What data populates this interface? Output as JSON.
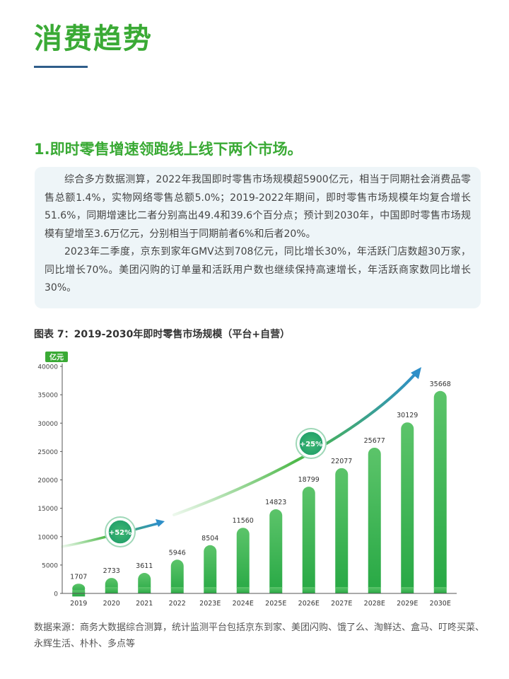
{
  "page": {
    "title": "消费趋势",
    "section_heading": "1.即时零售增速领跑线上线下两个市场。",
    "paragraphs": [
      "综合多方数据测算，2022年我国即时零售市场规模超5900亿元，相当于同期社会消费品零售总额1.4%，实物网络零售总额5.0%；2019-2022年期间，即时零售市场规模年均复合增长51.6%，同期增速比二者分别高出49.4和39.6个百分点；预计到2030年，中国即时零售市场规模有望增至3.6万亿元，分别相当于同期前者6%和后者20%。",
      "2023年二季度，京东到家年GMV达到708亿元，同比增长30%，年活跃门店数超30万家，同比增长70%。美团闪购的订单量和活跃用户数也继续保持高速增长，年活跃商家数同比增长30%。"
    ],
    "figure_caption": "图表 7：2019-2030年即时零售市场规模（平台+自营）",
    "source_note": "数据来源：商务大数据综合测算，统计监测平台包括京东到家、美团闪购、饿了么、淘鲜达、盒马、叮咚买菜、永辉生活、朴朴、多点等"
  },
  "colors": {
    "title_green": "#3aaa35",
    "bar_top": "#5cc46a",
    "bar_bottom": "#27a844",
    "arrow_green": "#4cb848",
    "arrow_blue": "#2e8fc8",
    "unit_badge": "#3aaa35"
  },
  "chart_data": {
    "type": "bar",
    "unit_label": "亿元",
    "categories": [
      "2019",
      "2020",
      "2021",
      "2022",
      "2023E",
      "2024E",
      "2025E",
      "2026E",
      "2027E",
      "2028E",
      "2029E",
      "2030E"
    ],
    "values": [
      1707,
      2733,
      3611,
      5946,
      8504,
      11560,
      14823,
      18799,
      22077,
      25677,
      30129,
      35668
    ],
    "y_ticks": [
      0,
      5000,
      10000,
      15000,
      20000,
      25000,
      30000,
      35000,
      40000
    ],
    "ylim": [
      0,
      40000
    ],
    "annotations": [
      "+52%",
      "+25%"
    ],
    "grid": false
  }
}
